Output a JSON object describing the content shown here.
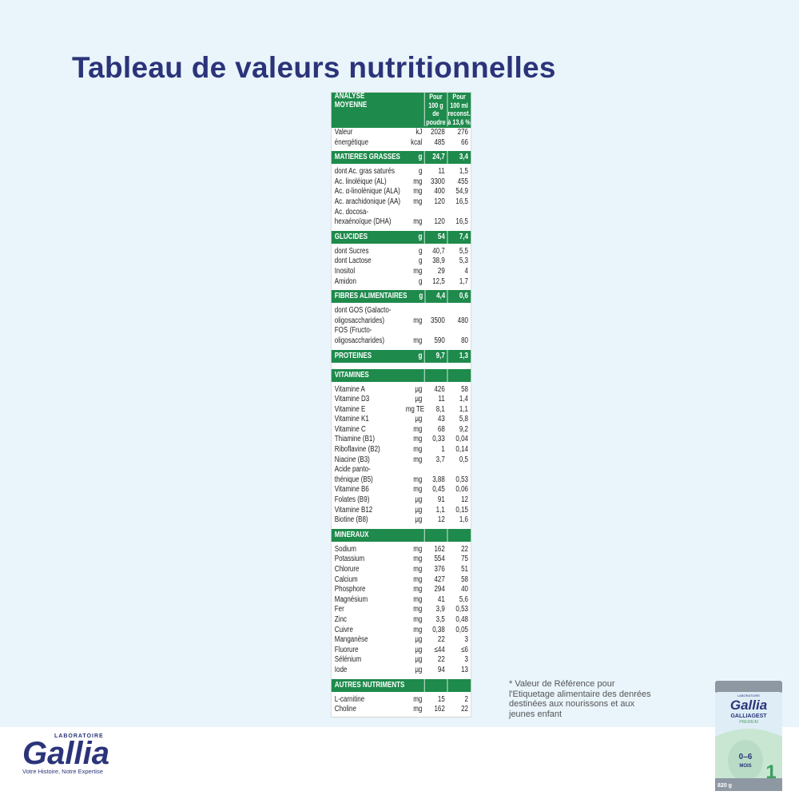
{
  "title": "Tableau de valeurs nutritionnelles",
  "table": {
    "header": {
      "label": [
        "ANALYSE",
        "MOYENNE"
      ],
      "col1": [
        "Pour",
        "100 g",
        "de",
        "poudre"
      ],
      "col2": [
        "Pour",
        "100 ml",
        "reconst.",
        "à 13,6 %"
      ]
    },
    "sections": [
      {
        "rows": [
          {
            "label": [
              "Valeur"
            ],
            "unit": "kJ",
            "v1": "2028",
            "v2": "276"
          },
          {
            "label": [
              "énergétique"
            ],
            "unit": "kcal",
            "v1": "485",
            "v2": "66"
          }
        ]
      },
      {
        "heading": {
          "label": "MATIERES GRASSES",
          "unit": "g",
          "v1": "24,7",
          "v2": "3,4"
        },
        "rows": [
          {
            "label": [
              "dont Ac. gras saturés"
            ],
            "unit": "g",
            "v1": "11",
            "v2": "1,5"
          },
          {
            "label": [
              "Ac. linoléique (AL)"
            ],
            "unit": "mg",
            "v1": "3300",
            "v2": "455"
          },
          {
            "label": [
              "Ac. α-linolénique (ALA)"
            ],
            "unit": "mg",
            "v1": "400",
            "v2": "54,9"
          },
          {
            "label": [
              "Ac. arachidonique (AA)"
            ],
            "unit": "mg",
            "v1": "120",
            "v2": "16,5"
          },
          {
            "label": [
              "Ac. docosa-",
              "hexaénoïque (DHA)"
            ],
            "unit": "mg",
            "v1": "120",
            "v2": "16,5"
          }
        ]
      },
      {
        "heading": {
          "label": "GLUCIDES",
          "unit": "g",
          "v1": "54",
          "v2": "7,4"
        },
        "rows": [
          {
            "label": [
              "dont Sucres"
            ],
            "unit": "g",
            "v1": "40,7",
            "v2": "5,5"
          },
          {
            "label": [
              "dont Lactose"
            ],
            "unit": "g",
            "v1": "38,9",
            "v2": "5,3"
          },
          {
            "label": [
              "Inositol"
            ],
            "unit": "mg",
            "v1": "29",
            "v2": "4"
          },
          {
            "label": [
              "Amidon"
            ],
            "unit": "g",
            "v1": "12,5",
            "v2": "1,7"
          }
        ]
      },
      {
        "heading": {
          "label": "FIBRES ALIMENTAIRES",
          "unit": "g",
          "v1": "4,4",
          "v2": "0,6"
        },
        "rows": [
          {
            "label": [
              "dont GOS (Galacto-",
              "oligosaccharides)"
            ],
            "unit": "mg",
            "v1": "3500",
            "v2": "480"
          },
          {
            "label": [
              "FOS (Fructo-",
              "oligosaccharides)"
            ],
            "unit": "mg",
            "v1": "590",
            "v2": "80"
          }
        ]
      },
      {
        "heading": {
          "label": "PROTEINES",
          "unit": "g",
          "v1": "9,7",
          "v2": "1,3"
        },
        "rows": []
      },
      {
        "heading": {
          "label": "VITAMINES"
        },
        "rows": [
          {
            "label": [
              "Vitamine A"
            ],
            "unit": "µg",
            "v1": "426",
            "v2": "58"
          },
          {
            "label": [
              "Vitamine D3"
            ],
            "unit": "µg",
            "v1": "11",
            "v2": "1,4"
          },
          {
            "label": [
              "Vitamine E"
            ],
            "unit": "mg TE",
            "v1": "8,1",
            "v2": "1,1"
          },
          {
            "label": [
              "Vitamine K1"
            ],
            "unit": "µg",
            "v1": "43",
            "v2": "5,8"
          },
          {
            "label": [
              "Vitamine C"
            ],
            "unit": "mg",
            "v1": "68",
            "v2": "9,2"
          },
          {
            "label": [
              "Thiamine (B1)"
            ],
            "unit": "mg",
            "v1": "0,33",
            "v2": "0,04"
          },
          {
            "label": [
              "Riboflavine (B2)"
            ],
            "unit": "mg",
            "v1": "1",
            "v2": "0,14"
          },
          {
            "label": [
              "Niacine (B3)"
            ],
            "unit": "mg",
            "v1": "3,7",
            "v2": "0,5"
          },
          {
            "label": [
              "Acide panto-",
              "thénique (B5)"
            ],
            "unit": "mg",
            "v1": "3,88",
            "v2": "0,53"
          },
          {
            "label": [
              "Vitamine B6"
            ],
            "unit": "mg",
            "v1": "0,45",
            "v2": "0,06"
          },
          {
            "label": [
              "Folates (B9)"
            ],
            "unit": "µg",
            "v1": "91",
            "v2": "12"
          },
          {
            "label": [
              "Vitamine B12"
            ],
            "unit": "µg",
            "v1": "1,1",
            "v2": "0,15"
          },
          {
            "label": [
              "Biotine (B8)"
            ],
            "unit": "µg",
            "v1": "12",
            "v2": "1,6"
          }
        ]
      },
      {
        "heading": {
          "label": "MINERAUX"
        },
        "rows": [
          {
            "label": [
              "Sodium"
            ],
            "unit": "mg",
            "v1": "162",
            "v2": "22"
          },
          {
            "label": [
              "Potassium"
            ],
            "unit": "mg",
            "v1": "554",
            "v2": "75"
          },
          {
            "label": [
              "Chlorure"
            ],
            "unit": "mg",
            "v1": "376",
            "v2": "51"
          },
          {
            "label": [
              "Calcium"
            ],
            "unit": "mg",
            "v1": "427",
            "v2": "58"
          },
          {
            "label": [
              "Phosphore"
            ],
            "unit": "mg",
            "v1": "294",
            "v2": "40"
          },
          {
            "label": [
              "Magnésium"
            ],
            "unit": "mg",
            "v1": "41",
            "v2": "5,6"
          },
          {
            "label": [
              "Fer"
            ],
            "unit": "mg",
            "v1": "3,9",
            "v2": "0,53"
          },
          {
            "label": [
              "Zinc"
            ],
            "unit": "mg",
            "v1": "3,5",
            "v2": "0,48"
          },
          {
            "label": [
              "Cuivre"
            ],
            "unit": "mg",
            "v1": "0,38",
            "v2": "0,05"
          },
          {
            "label": [
              "Manganèse"
            ],
            "unit": "µg",
            "v1": "22",
            "v2": "3"
          },
          {
            "label": [
              "Fluorure"
            ],
            "unit": "µg",
            "v1": "≤44",
            "v2": "≤6"
          },
          {
            "label": [
              "Sélénium"
            ],
            "unit": "µg",
            "v1": "22",
            "v2": "3"
          },
          {
            "label": [
              "Iode"
            ],
            "unit": "µg",
            "v1": "94",
            "v2": "13"
          }
        ]
      },
      {
        "heading": {
          "label": "AUTRES NUTRIMENTS"
        },
        "rows": [
          {
            "label": [
              "L-carnitine"
            ],
            "unit": "mg",
            "v1": "15",
            "v2": "2"
          },
          {
            "label": [
              "Choline"
            ],
            "unit": "mg",
            "v1": "162",
            "v2": "22"
          }
        ]
      }
    ]
  },
  "footnote": [
    "* Valeur de Référence pour",
    "l'Etiquetage alimentaire des denrées",
    "destinées aux nourissons et aux",
    "jeunes enfant"
  ],
  "logo": {
    "lab": "LABORATOIRE",
    "brand": "Gallia",
    "tagline": "Votre Histoire, Notre Expertise"
  },
  "product": {
    "lab": "LABORATOIRE",
    "brand": "Gallia",
    "line": "GALLIAGEST",
    "sub": "PREMIUM",
    "age": "0–6",
    "unit": "MOIS",
    "stage": "1",
    "weight": "820 g"
  }
}
